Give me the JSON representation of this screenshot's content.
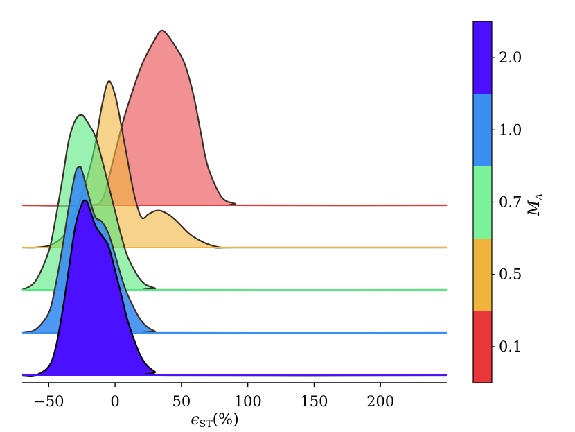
{
  "chart_data": {
    "type": "area",
    "subtype": "ridgeline",
    "xlabel": "ϵ_ST(%)",
    "xlim": [
      -70,
      250
    ],
    "xticks": [
      -50,
      0,
      50,
      100,
      150,
      200
    ],
    "series": [
      {
        "name": "0.1",
        "color": "#e8363b",
        "fill_opacity": 0.55,
        "peak": 1.0,
        "x": [
          -70,
          -20,
          -10,
          -5,
          0,
          5,
          10,
          20,
          30,
          35,
          40,
          50,
          55,
          60,
          65,
          70,
          80,
          90,
          100,
          250
        ],
        "density": [
          0,
          0,
          0.03,
          0.15,
          0.3,
          0.45,
          0.58,
          0.8,
          0.95,
          1.0,
          0.97,
          0.85,
          0.75,
          0.6,
          0.4,
          0.22,
          0.05,
          0.01,
          0,
          0
        ]
      },
      {
        "name": "0.5",
        "color": "#f0b43c",
        "fill_opacity": 0.6,
        "peak": 0.95,
        "x": [
          -70,
          -60,
          -50,
          -45,
          -40,
          -35,
          -30,
          -20,
          -15,
          -10,
          -5,
          0,
          5,
          10,
          15,
          20,
          25,
          30,
          35,
          40,
          45,
          50,
          55,
          60,
          70,
          80,
          90,
          250
        ],
        "density": [
          0,
          0,
          0.01,
          0.03,
          0.06,
          0.12,
          0.2,
          0.45,
          0.62,
          0.85,
          1.0,
          0.92,
          0.72,
          0.5,
          0.3,
          0.18,
          0.2,
          0.22,
          0.22,
          0.2,
          0.17,
          0.13,
          0.09,
          0.06,
          0.02,
          0,
          0,
          0
        ]
      },
      {
        "name": "0.7",
        "color": "#55e87e",
        "fill_opacity": 0.6,
        "peak": 1.0,
        "x": [
          -70,
          -60,
          -50,
          -45,
          -40,
          -35,
          -30,
          -25,
          -20,
          -15,
          -10,
          -5,
          0,
          5,
          10,
          20,
          30,
          40,
          250
        ],
        "density": [
          0,
          0.05,
          0.22,
          0.4,
          0.62,
          0.85,
          0.97,
          1.0,
          0.95,
          0.88,
          0.75,
          0.6,
          0.45,
          0.3,
          0.18,
          0.05,
          0.01,
          0,
          0
        ]
      },
      {
        "name": "1.0",
        "color": "#3a8ef2",
        "fill_opacity": 0.9,
        "peak": 0.95,
        "x": [
          -70,
          -60,
          -50,
          -45,
          -40,
          -35,
          -30,
          -27,
          -25,
          -20,
          -15,
          -10,
          -5,
          0,
          5,
          10,
          20,
          30,
          40,
          250
        ],
        "density": [
          0,
          0.02,
          0.12,
          0.28,
          0.5,
          0.75,
          0.96,
          1.0,
          0.98,
          0.83,
          0.7,
          0.67,
          0.6,
          0.47,
          0.33,
          0.22,
          0.07,
          0.01,
          0,
          0
        ]
      },
      {
        "name": "2.0",
        "color": "#4a10ff",
        "fill_opacity": 1.0,
        "peak": 1.0,
        "x": [
          -70,
          -60,
          -50,
          -45,
          -40,
          -35,
          -30,
          -25,
          -22,
          -20,
          -15,
          -10,
          -5,
          0,
          5,
          10,
          20,
          30,
          40,
          250
        ],
        "density": [
          0,
          0,
          0.05,
          0.15,
          0.35,
          0.6,
          0.85,
          0.98,
          1.0,
          0.97,
          0.86,
          0.8,
          0.74,
          0.6,
          0.45,
          0.3,
          0.1,
          0.02,
          0,
          0
        ]
      }
    ],
    "colorbar": {
      "label": "M_A",
      "ticks": [
        "0.1",
        "0.5",
        "0.7",
        "1.0",
        "2.0"
      ],
      "colors": [
        "#e8363b",
        "#f0b43c",
        "#7af39a",
        "#3a8ef2",
        "#4a10ff"
      ]
    },
    "grid": false,
    "legend": "none"
  }
}
